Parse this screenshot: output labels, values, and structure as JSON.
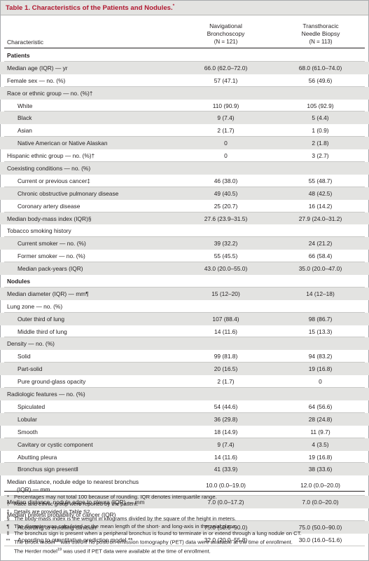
{
  "title": "Table 1. Characteristics of the Patients and Nodules.",
  "title_mark": "*",
  "columns": {
    "characteristic": "Characteristic",
    "nav_line1": "Navigational",
    "nav_line2": "Bronchoscopy",
    "nav_n": "(N = 121)",
    "tt_line1": "Transthoracic",
    "tt_line2": "Needle Biopsy",
    "tt_n": "(N = 113)"
  },
  "rows": [
    {
      "label": "Patients",
      "type": "section",
      "shade": false
    },
    {
      "label": "Median age (IQR) — yr",
      "v1": "66.0 (62.0–72.0)",
      "v2": "68.0 (61.0–74.0)",
      "shade": true
    },
    {
      "label": "Female sex — no. (%)",
      "v1": "57 (47.1)",
      "v2": "56 (49.6)",
      "shade": false
    },
    {
      "label": "Race or ethnic group — no. (%)†",
      "shade": true
    },
    {
      "label": "White",
      "v1": "110 (90.9)",
      "v2": "105 (92.9)",
      "indent": true,
      "shade": false
    },
    {
      "label": "Black",
      "v1": "9 (7.4)",
      "v2": "5 (4.4)",
      "indent": true,
      "shade": true
    },
    {
      "label": "Asian",
      "v1": "2 (1.7)",
      "v2": "1 (0.9)",
      "indent": true,
      "shade": false
    },
    {
      "label": "Native American or Native Alaskan",
      "v1": "0",
      "v2": "2 (1.8)",
      "indent": true,
      "shade": true
    },
    {
      "label": "Hispanic ethnic group — no. (%)†",
      "v1": "0",
      "v2": "3 (2.7)",
      "shade": false
    },
    {
      "label": "Coexisting conditions — no. (%)",
      "shade": true
    },
    {
      "label": "Current or previous cancer‡",
      "v1": "46 (38.0)",
      "v2": "55 (48.7)",
      "indent": true,
      "shade": false
    },
    {
      "label": "Chronic obstructive pulmonary disease",
      "v1": "49 (40.5)",
      "v2": "48 (42.5)",
      "indent": true,
      "shade": true
    },
    {
      "label": "Coronary artery disease",
      "v1": "25 (20.7)",
      "v2": "16 (14.2)",
      "indent": true,
      "shade": false
    },
    {
      "label": "Median body-mass index (IQR)§",
      "v1": "27.6 (23.9–31.5)",
      "v2": "27.9 (24.0–31.2)",
      "shade": true
    },
    {
      "label": "Tobacco smoking history",
      "shade": false
    },
    {
      "label": "Current smoker — no. (%)",
      "v1": "39 (32.2)",
      "v2": "24 (21.2)",
      "indent": true,
      "shade": true
    },
    {
      "label": "Former smoker — no. (%)",
      "v1": "55 (45.5)",
      "v2": "66 (58.4)",
      "indent": true,
      "shade": false
    },
    {
      "label": "Median pack-years (IQR)",
      "v1": "43.0 (20.0–55.0)",
      "v2": "35.0 (20.0–47.0)",
      "indent": true,
      "shade": true
    },
    {
      "label": "Nodules",
      "type": "section",
      "shade": false
    },
    {
      "label": "Median diameter (IQR) — mm¶",
      "v1": "15 (12–20)",
      "v2": "14 (12–18)",
      "shade": true
    },
    {
      "label": "Lung zone — no. (%)",
      "shade": false
    },
    {
      "label": "Outer third of lung",
      "v1": "107 (88.4)",
      "v2": "98 (86.7)",
      "indent": true,
      "shade": true
    },
    {
      "label": "Middle third of lung",
      "v1": "14 (11.6)",
      "v2": "15 (13.3)",
      "indent": true,
      "shade": false
    },
    {
      "label": "Density — no. (%)",
      "shade": true
    },
    {
      "label": "Solid",
      "v1": "99 (81.8)",
      "v2": "94 (83.2)",
      "indent": true,
      "shade": false
    },
    {
      "label": "Part-solid",
      "v1": "20 (16.5)",
      "v2": "19 (16.8)",
      "indent": true,
      "shade": true
    },
    {
      "label": "Pure ground-glass opacity",
      "v1": "2 (1.7)",
      "v2": "0",
      "indent": true,
      "shade": false
    },
    {
      "label": "Radiologic features — no. (%)",
      "shade": true
    },
    {
      "label": "Spiculated",
      "v1": "54 (44.6)",
      "v2": "64 (56.6)",
      "indent": true,
      "shade": false
    },
    {
      "label": "Lobular",
      "v1": "36 (29.8)",
      "v2": "28 (24.8)",
      "indent": true,
      "shade": true
    },
    {
      "label": "Smooth",
      "v1": "18 (14.9)",
      "v2": "11 (9.7)",
      "indent": true,
      "shade": false
    },
    {
      "label": "Cavitary or cystic component",
      "v1": "9 (7.4)",
      "v2": "4 (3.5)",
      "indent": true,
      "shade": true
    },
    {
      "label": "Abutting pleura",
      "v1": "14 (11.6)",
      "v2": "19 (16.8)",
      "indent": true,
      "shade": false
    },
    {
      "label": "Bronchus sign present‖",
      "v1": "41 (33.9)",
      "v2": "38 (33.6)",
      "indent": true,
      "shade": true
    },
    {
      "label": "Median distance, nodule edge to nearest bronchus",
      "label2": "(IQR) — mm",
      "v1": "10.0 (0.0–19.0)",
      "v2": "12.0 (0.0–20.0)",
      "tall": true,
      "shade": false
    },
    {
      "label": "Median distance, nodule edge to pleura (IQR) — mm",
      "v1": "7.0 (0.0–17.2)",
      "v2": "7.0 (0.0–20.0)",
      "shade": true
    },
    {
      "label": "Median pretest probability of cancer (IQR)",
      "shade": false
    },
    {
      "label": "According to enrolling clinician",
      "v1": "75.0 (50.0–90.0)",
      "v2": "75.0 (50.0–90.0)",
      "indent": true,
      "shade": true
    },
    {
      "label": "According to quantitative prediction model **",
      "v1": "32.0 (20.0–55.8)",
      "v2": "30.0 (16.0–51.6)",
      "indent": true,
      "shade": false
    }
  ],
  "footnotes": [
    {
      "sym": "*",
      "text": "Percentages may not total 100 because of rounding. IQR denotes interquartile range."
    },
    {
      "sym": "†",
      "text": "Race and ethnic group were reported by the patient."
    },
    {
      "sym": "‡",
      "text": "Details are provided in Table S2."
    },
    {
      "sym": "§",
      "text": "The body-mass index is the weight in kilograms divided by the square of the height in meters."
    },
    {
      "sym": "¶",
      "text": "The diameter was calculated as the mean length of the short- and long-axis in the axial plane."
    },
    {
      "sym": "‖",
      "text": "The bronchus sign is present when a peripheral bronchus is found to terminate in or extend through a lung nodule on CT."
    },
    {
      "sym": "**",
      "text_a": "The Brock model",
      "ref_a": "18",
      "text_b": " was used if no positron-emission tomography (PET) data were available at the time of enrollment."
    },
    {
      "sym": "",
      "text_a": "The Herder model",
      "ref_a": "19",
      "text_b": " was used if PET data were available at the time of enrollment."
    }
  ]
}
